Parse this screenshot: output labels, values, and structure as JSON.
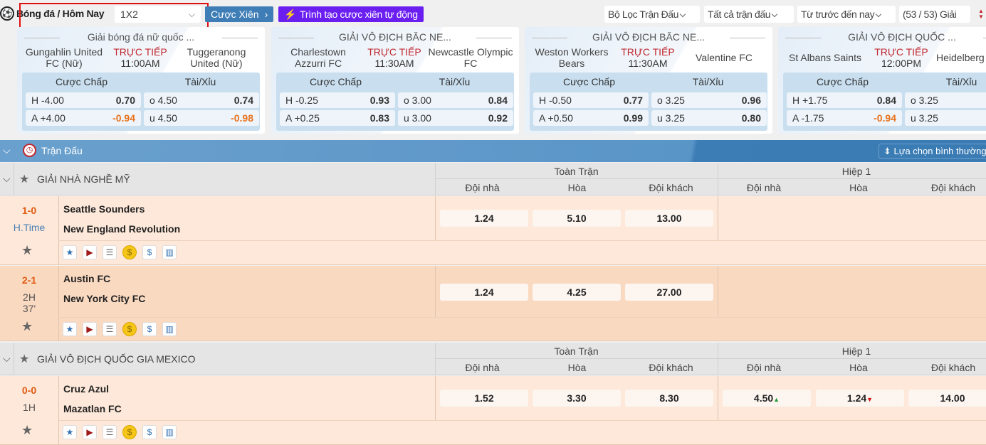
{
  "header": {
    "breadcrumb": "Bóng đá / Hôm Nay",
    "market_select": "1X2",
    "parlay_button": "Cược Xiên",
    "auto_parlay_button": "Trình tạo cược xiên tự động",
    "filters": [
      "Bộ Lọc Trận Đấu",
      "Tất cả trận đấu",
      "Từ trước đến nay"
    ],
    "league_count": "(53 / 53) Giải"
  },
  "featured": [
    {
      "league": "Giải bóng đá nữ quốc ...",
      "home": "Gungahlin United FC (Nữ)",
      "away": "Tuggeranong United (Nữ)",
      "status": "TRỰC TIẾP",
      "time": "11:00AM",
      "hcap_label": "Cược Chấp",
      "ou_label": "Tài/Xỉu",
      "h_line": "H -4.00",
      "h_odds": "0.70",
      "a_line": "A +4.00",
      "a_odds": "-0.94",
      "o_line": "o 4.50",
      "o_odds": "0.74",
      "u_line": "u 4.50",
      "u_odds": "-0.98"
    },
    {
      "league": "GIẢI VÔ ĐỊCH BĂC NE...",
      "home": "Charlestown Azzurri FC",
      "away": "Newcastle Olympic FC",
      "status": "TRỰC TIẾP",
      "time": "11:30AM",
      "hcap_label": "Cược Chấp",
      "ou_label": "Tài/Xỉu",
      "h_line": "H -0.25",
      "h_odds": "0.93",
      "a_line": "A +0.25",
      "a_odds": "0.83",
      "o_line": "o 3.00",
      "o_odds": "0.84",
      "u_line": "u 3.00",
      "u_odds": "0.92"
    },
    {
      "league": "GIẢI VÔ ĐỊCH BĂC NE...",
      "home": "Weston Workers Bears",
      "away": "Valentine FC",
      "status": "TRỰC TIẾP",
      "time": "11:30AM",
      "hcap_label": "Cược Chấp",
      "ou_label": "Tài/Xỉu",
      "h_line": "H -0.50",
      "h_odds": "0.77",
      "a_line": "A +0.50",
      "a_odds": "0.99",
      "o_line": "o 3.25",
      "o_odds": "0.96",
      "u_line": "u 3.25",
      "u_odds": "0.80"
    },
    {
      "league": "GIẢI VÔ ĐỊCH QUỐC ...",
      "home": "St Albans Saints",
      "away": "Heidelberg U",
      "status": "TRỰC TIẾP",
      "time": "12:00PM",
      "hcap_label": "Cược Chấp",
      "ou_label": "Tài/Xỉu",
      "h_line": "H +1.75",
      "h_odds": "0.84",
      "a_line": "A -1.75",
      "a_odds": "-0.94",
      "o_line": "o 3.25",
      "o_odds": "",
      "u_line": "u 3.25",
      "u_odds": ""
    }
  ],
  "section": {
    "title": "Trận Đấu",
    "sort_option": "Lựa chọn bình thường"
  },
  "columns": {
    "full_time": "Toàn Trận",
    "first_half": "Hiệp 1",
    "home": "Đội nhà",
    "draw": "Hòa",
    "away": "Đội khách"
  },
  "leagues": [
    {
      "name": "GIẢI NHÀ NGHỀ MỸ",
      "matches": [
        {
          "score": "1-0",
          "status": "H.Time",
          "minute": "",
          "home": "Seattle Sounders",
          "away": "New England Revolution",
          "ft": [
            "1.24",
            "5.10",
            "13.00"
          ],
          "h1": [
            "",
            "",
            ""
          ]
        },
        {
          "score": "2-1",
          "status": "2H",
          "minute": "37'",
          "home": "Austin FC",
          "away": "New York City FC",
          "ft": [
            "1.24",
            "4.25",
            "27.00"
          ],
          "h1": [
            "",
            "",
            ""
          ]
        }
      ]
    },
    {
      "name": "GIẢI VÔ ĐỊCH QUỐC GIA MEXICO",
      "matches": [
        {
          "score": "0-0",
          "status": "1H",
          "minute": "",
          "home": "Cruz Azul",
          "away": "Mazatlan FC",
          "ft": [
            "1.52",
            "3.30",
            "8.30"
          ],
          "h1": [
            "4.50",
            "1.24",
            "14.00"
          ]
        }
      ]
    }
  ],
  "colors": {
    "accent": "#3e7db5",
    "auto": "#6b1ef0",
    "live": "#c0282f",
    "score": "#e05a10",
    "negative": "#e8731e"
  }
}
